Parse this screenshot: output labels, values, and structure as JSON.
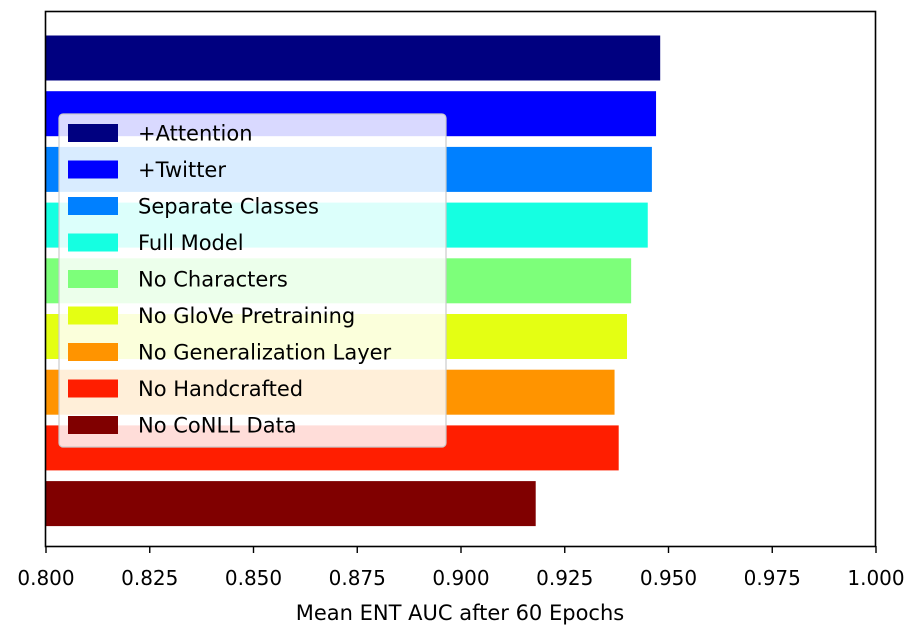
{
  "chart_data": {
    "type": "bar",
    "orientation": "horizontal",
    "xlabel": "Mean ENT AUC after 60 Epochs",
    "xlim": [
      0.8,
      1.0
    ],
    "xticks": [
      0.8,
      0.825,
      0.85,
      0.875,
      0.9,
      0.925,
      0.95,
      0.975,
      1.0
    ],
    "xtick_labels": [
      "0.800",
      "0.825",
      "0.850",
      "0.875",
      "0.900",
      "0.925",
      "0.950",
      "0.975",
      "1.000"
    ],
    "grid": false,
    "legend_position": "upper-left",
    "series": [
      {
        "name": "+Attention",
        "value": 0.948,
        "color": "#000080"
      },
      {
        "name": "+Twitter",
        "value": 0.947,
        "color": "#0000ff"
      },
      {
        "name": "Separate Classes",
        "value": 0.946,
        "color": "#0080ff"
      },
      {
        "name": "Full Model",
        "value": 0.945,
        "color": "#15ffe1"
      },
      {
        "name": "No Characters",
        "value": 0.941,
        "color": "#7dff7a"
      },
      {
        "name": "No GloVe Pretraining",
        "value": 0.94,
        "color": "#e4ff13"
      },
      {
        "name": "No Generalization Layer",
        "value": 0.937,
        "color": "#ff9400"
      },
      {
        "name": "No Handcrafted",
        "value": 0.938,
        "color": "#ff1e00"
      },
      {
        "name": "No CoNLL Data",
        "value": 0.918,
        "color": "#800000"
      }
    ]
  }
}
